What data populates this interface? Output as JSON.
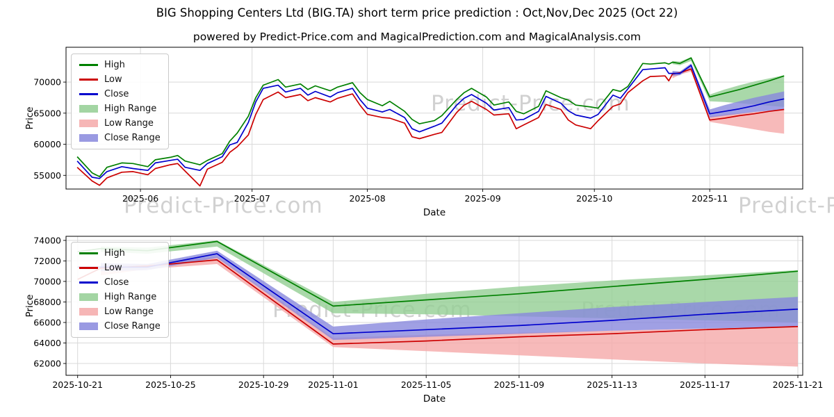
{
  "figure": {
    "title": "BIG Shopping Centers Ltd (BIG.TA) short term price prediction : Oct,Nov,Dec 2025 (Oct 22)",
    "subtitle": "powered by Predict-Price.com and MagicalPrediction.com and MagicalAnalysis.com",
    "watermark": "Predict-Price.com"
  },
  "colors": {
    "high": "#008000",
    "low": "#cc0000",
    "close": "#0000cd",
    "high_range": "#93ce93",
    "low_range": "#f5a9a9",
    "close_range": "#8888dd",
    "grid": "#d9d9d9",
    "spine": "#000000"
  },
  "chart_data": [
    {
      "type": "line",
      "name": "price-history-with-prediction",
      "xlabel": "Date",
      "ylabel": "Price",
      "xlim": [
        "2025-05-12T00:00:00Z",
        "2025-11-26T00:00:00Z"
      ],
      "ylim": [
        52800,
        75600
      ],
      "yticks": [
        55000,
        60000,
        65000,
        70000
      ],
      "xticks": [
        {
          "d": "2025-06-01",
          "label": "2025-06"
        },
        {
          "d": "2025-07-01",
          "label": "2025-07"
        },
        {
          "d": "2025-08-01",
          "label": "2025-08"
        },
        {
          "d": "2025-09-01",
          "label": "2025-09"
        },
        {
          "d": "2025-10-01",
          "label": "2025-10"
        },
        {
          "d": "2025-11-01",
          "label": "2025-11"
        }
      ],
      "grid": true,
      "legend_position": "upper left",
      "legend": [
        {
          "label": "High",
          "swatch": "line",
          "color_key": "high"
        },
        {
          "label": "Low",
          "swatch": "line",
          "color_key": "low"
        },
        {
          "label": "Close",
          "swatch": "line",
          "color_key": "close"
        },
        {
          "label": "High Range",
          "swatch": "patch",
          "color_key": "high_range"
        },
        {
          "label": "Low Range",
          "swatch": "patch",
          "color_key": "low_range"
        },
        {
          "label": "Close Range",
          "swatch": "patch",
          "color_key": "close_range"
        }
      ],
      "history": {
        "dates": [
          "2025-05-15",
          "2025-05-19",
          "2025-05-21",
          "2025-05-23",
          "2025-05-27",
          "2025-05-30",
          "2025-06-03",
          "2025-06-05",
          "2025-06-09",
          "2025-06-11",
          "2025-06-13",
          "2025-06-17",
          "2025-06-19",
          "2025-06-23",
          "2025-06-25",
          "2025-06-27",
          "2025-06-30",
          "2025-07-02",
          "2025-07-04",
          "2025-07-08",
          "2025-07-10",
          "2025-07-14",
          "2025-07-16",
          "2025-07-18",
          "2025-07-22",
          "2025-07-24",
          "2025-07-28",
          "2025-07-30",
          "2025-08-01",
          "2025-08-05",
          "2025-08-07",
          "2025-08-11",
          "2025-08-13",
          "2025-08-15",
          "2025-08-19",
          "2025-08-21",
          "2025-08-25",
          "2025-08-27",
          "2025-08-29",
          "2025-09-02",
          "2025-09-04",
          "2025-09-08",
          "2025-09-10",
          "2025-09-12",
          "2025-09-16",
          "2025-09-18",
          "2025-09-22",
          "2025-09-24",
          "2025-09-26",
          "2025-09-30",
          "2025-10-02",
          "2025-10-06",
          "2025-10-08",
          "2025-10-10",
          "2025-10-14",
          "2025-10-16",
          "2025-10-20",
          "2025-10-21",
          "2025-10-22"
        ],
        "high": [
          58000,
          55400,
          54800,
          56300,
          57000,
          56900,
          56400,
          57500,
          57900,
          58200,
          57300,
          56700,
          57400,
          58500,
          60500,
          61800,
          64500,
          67500,
          69500,
          70400,
          69200,
          69700,
          68800,
          69400,
          68600,
          69200,
          69900,
          68300,
          67200,
          66200,
          66900,
          65300,
          64000,
          63300,
          63800,
          64600,
          67200,
          68300,
          69000,
          67600,
          66300,
          66800,
          65300,
          64900,
          66100,
          68600,
          67500,
          67100,
          66300,
          66000,
          65800,
          68800,
          68500,
          69300,
          73000,
          72900,
          73100,
          72900,
          73200
        ],
        "low": [
          56300,
          54100,
          53400,
          54600,
          55500,
          55600,
          55100,
          56100,
          56700,
          56900,
          55700,
          53300,
          56000,
          57100,
          58700,
          59600,
          61500,
          64800,
          67200,
          68400,
          67500,
          68000,
          67000,
          67500,
          66800,
          67400,
          68100,
          66300,
          64800,
          64300,
          64200,
          63400,
          61200,
          60900,
          61600,
          61900,
          65100,
          66300,
          66900,
          65600,
          64700,
          64900,
          62500,
          63100,
          64300,
          66400,
          65600,
          63900,
          63100,
          62500,
          63800,
          66100,
          66500,
          68300,
          70200,
          70900,
          71000,
          70200,
          71300
        ],
        "close": [
          57300,
          54700,
          54500,
          55600,
          56400,
          56100,
          55800,
          57000,
          57400,
          57600,
          56300,
          55800,
          56900,
          58000,
          59900,
          60300,
          63500,
          66800,
          69000,
          69500,
          68400,
          69000,
          67900,
          68500,
          67600,
          68300,
          69000,
          67200,
          65800,
          65200,
          65600,
          64300,
          62500,
          62000,
          62900,
          63400,
          66300,
          67400,
          68000,
          66600,
          65500,
          65900,
          63900,
          64000,
          65300,
          67700,
          66600,
          65400,
          64700,
          64200,
          64800,
          67900,
          67400,
          68900,
          72000,
          72100,
          72300,
          71400,
          71400
        ]
      },
      "prediction": {
        "dates": [
          "2025-10-22",
          "2025-10-24",
          "2025-10-27",
          "2025-11-01",
          "2025-11-05",
          "2025-11-09",
          "2025-11-13",
          "2025-11-17",
          "2025-11-21"
        ],
        "high": [
          73200,
          73000,
          73900,
          67600,
          68200,
          68800,
          69500,
          70200,
          71000
        ],
        "low": [
          71300,
          71500,
          72100,
          63900,
          64200,
          64600,
          64900,
          65300,
          65600
        ],
        "close": [
          71400,
          71400,
          72700,
          64900,
          65300,
          65700,
          66200,
          66800,
          67300
        ],
        "high_upper": [
          73400,
          73300,
          74000,
          68000,
          68800,
          69500,
          70100,
          70600,
          71100
        ],
        "high_lower": [
          72900,
          72700,
          73400,
          66900,
          66800,
          66600,
          66400,
          66200,
          66000
        ],
        "low_upper": [
          71600,
          71700,
          72400,
          64500,
          64800,
          65000,
          65200,
          65400,
          65600
        ],
        "low_lower": [
          70600,
          71200,
          71700,
          63600,
          63200,
          62800,
          62400,
          62000,
          61700
        ],
        "close_upper": [
          71800,
          71700,
          73000,
          65600,
          66300,
          66900,
          67500,
          68000,
          68500
        ],
        "close_lower": [
          71000,
          71100,
          72300,
          64300,
          64600,
          64900,
          65200,
          65400,
          65600
        ]
      }
    },
    {
      "type": "line",
      "name": "short-term-prediction-zoom",
      "xlabel": "Date",
      "ylabel": "Price",
      "xlim": [
        "2025-10-20T12:00:00Z",
        "2025-11-21T05:00:00Z"
      ],
      "ylim": [
        60850,
        74400
      ],
      "yticks": [
        62000,
        64000,
        66000,
        68000,
        70000,
        72000,
        74000
      ],
      "xticks": [
        {
          "d": "2025-10-21",
          "label": "2025-10-21"
        },
        {
          "d": "2025-10-25",
          "label": "2025-10-25"
        },
        {
          "d": "2025-10-29",
          "label": "2025-10-29"
        },
        {
          "d": "2025-11-01",
          "label": "2025-11-01"
        },
        {
          "d": "2025-11-05",
          "label": "2025-11-05"
        },
        {
          "d": "2025-11-09",
          "label": "2025-11-09"
        },
        {
          "d": "2025-11-13",
          "label": "2025-11-13"
        },
        {
          "d": "2025-11-17",
          "label": "2025-11-17"
        },
        {
          "d": "2025-11-21",
          "label": "2025-11-21"
        }
      ],
      "grid": true,
      "legend_position": "upper left",
      "legend": [
        {
          "label": "High",
          "swatch": "line",
          "color_key": "high"
        },
        {
          "label": "Low",
          "swatch": "line",
          "color_key": "low"
        },
        {
          "label": "Close",
          "swatch": "line",
          "color_key": "close"
        },
        {
          "label": "High Range",
          "swatch": "patch",
          "color_key": "high_range"
        },
        {
          "label": "Low Range",
          "swatch": "patch",
          "color_key": "low_range"
        },
        {
          "label": "Close Range",
          "swatch": "patch",
          "color_key": "close_range"
        }
      ],
      "history": {
        "dates": [
          "2025-10-21",
          "2025-10-22"
        ],
        "high": [
          72900,
          73200
        ],
        "low": [
          70200,
          71300
        ],
        "close": [
          71400,
          71400
        ]
      },
      "prediction": {
        "dates": [
          "2025-10-22",
          "2025-10-24",
          "2025-10-27",
          "2025-11-01",
          "2025-11-05",
          "2025-11-09",
          "2025-11-13",
          "2025-11-17",
          "2025-11-21"
        ],
        "high": [
          73200,
          73000,
          73900,
          67600,
          68200,
          68800,
          69500,
          70200,
          71000
        ],
        "low": [
          71300,
          71500,
          72100,
          63900,
          64200,
          64600,
          64900,
          65300,
          65600
        ],
        "close": [
          71400,
          71400,
          72700,
          64900,
          65300,
          65700,
          66200,
          66800,
          67300
        ],
        "high_upper": [
          73400,
          73300,
          74000,
          68000,
          68800,
          69500,
          70100,
          70600,
          71100
        ],
        "high_lower": [
          72900,
          72700,
          73400,
          66900,
          66800,
          66600,
          66400,
          66200,
          66000
        ],
        "low_upper": [
          71600,
          71700,
          72400,
          64500,
          64800,
          65000,
          65200,
          65400,
          65600
        ],
        "low_lower": [
          70600,
          71200,
          71700,
          63600,
          63200,
          62800,
          62400,
          62000,
          61700
        ],
        "close_upper": [
          71800,
          71700,
          73000,
          65600,
          66300,
          66900,
          67500,
          68000,
          68500
        ],
        "close_lower": [
          71000,
          71100,
          72300,
          64300,
          64600,
          64900,
          65200,
          65400,
          65600
        ]
      }
    }
  ]
}
